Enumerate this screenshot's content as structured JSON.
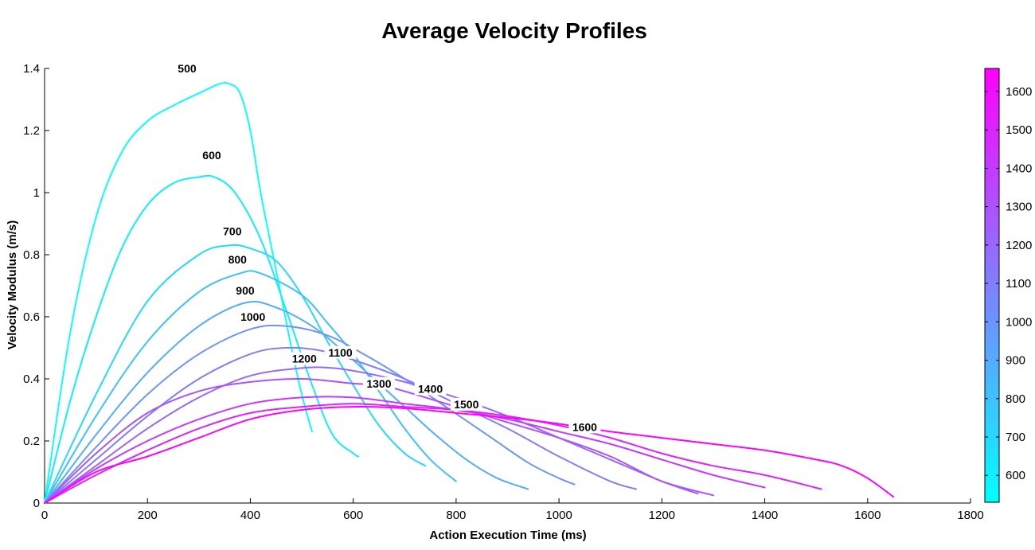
{
  "chart_data": {
    "type": "line",
    "title": "Average Velocity Profiles",
    "xlabel": "Action Execution Time (ms)",
    "ylabel": "Velocity Modulus (m/s)",
    "xlim": [
      0,
      1800
    ],
    "ylim": [
      0,
      1.4
    ],
    "xticks": [
      0,
      200,
      400,
      600,
      800,
      1000,
      1200,
      1400,
      1600,
      1800
    ],
    "yticks": [
      0,
      0.2,
      0.4,
      0.6,
      0.8,
      1,
      1.2,
      1.4
    ],
    "xtick_labels": [
      "0",
      "200",
      "400",
      "600",
      "800",
      "1000",
      "1200",
      "1400",
      "1600",
      "1800"
    ],
    "ytick_labels": [
      "0",
      "0.2",
      "0.4",
      "0.6",
      "0.8",
      "1",
      "1.2",
      "1.4"
    ],
    "colorbar": {
      "range": [
        530,
        1660
      ],
      "ticks": [
        600,
        700,
        800,
        900,
        1000,
        1100,
        1200,
        1300,
        1400,
        1500,
        1600
      ],
      "tick_labels": [
        "600",
        "700",
        "800",
        "900",
        "1000",
        "1100",
        "1200",
        "1300",
        "1400",
        "1500",
        "1600"
      ],
      "colormap": "cool",
      "color_low": "#00ffff",
      "color_high": "#ff00ff"
    },
    "series": [
      {
        "name": "500",
        "label": "500",
        "color_value": 530,
        "dashed": true,
        "x": [
          0,
          50,
          100,
          150,
          200,
          250,
          300,
          340,
          360,
          380,
          400,
          420,
          450,
          480,
          500,
          520
        ],
        "y": [
          0,
          0.55,
          0.92,
          1.13,
          1.23,
          1.28,
          1.32,
          1.35,
          1.35,
          1.32,
          1.2,
          1.0,
          0.75,
          0.5,
          0.35,
          0.23
        ],
        "label_at": [
          277,
          1.39
        ]
      },
      {
        "name": "600",
        "label": "600",
        "color_value": 600,
        "x": [
          0,
          50,
          100,
          150,
          200,
          250,
          300,
          330,
          370,
          420,
          470,
          520,
          560,
          600,
          610
        ],
        "y": [
          0,
          0.33,
          0.6,
          0.82,
          0.96,
          1.03,
          1.05,
          1.05,
          1.0,
          0.85,
          0.62,
          0.38,
          0.22,
          0.16,
          0.15
        ],
        "label_at": [
          325,
          1.11
        ]
      },
      {
        "name": "700",
        "label": "700",
        "color_value": 700,
        "x": [
          0,
          100,
          200,
          300,
          360,
          400,
          450,
          500,
          550,
          600,
          650,
          700,
          740
        ],
        "y": [
          0,
          0.35,
          0.65,
          0.8,
          0.83,
          0.82,
          0.78,
          0.67,
          0.52,
          0.38,
          0.25,
          0.16,
          0.12
        ],
        "label_at": [
          365,
          0.865
        ]
      },
      {
        "name": "800",
        "label": "800",
        "color_value": 800,
        "x": [
          0,
          100,
          200,
          300,
          380,
          420,
          500,
          550,
          600,
          650,
          700,
          750,
          800
        ],
        "y": [
          0,
          0.28,
          0.52,
          0.68,
          0.74,
          0.74,
          0.67,
          0.58,
          0.48,
          0.36,
          0.24,
          0.14,
          0.07
        ],
        "label_at": [
          375,
          0.775
        ]
      },
      {
        "name": "900",
        "label": "900",
        "color_value": 900,
        "x": [
          0,
          100,
          200,
          300,
          390,
          450,
          520,
          580,
          640,
          700,
          760,
          820,
          880,
          940
        ],
        "y": [
          0,
          0.22,
          0.42,
          0.57,
          0.645,
          0.63,
          0.57,
          0.49,
          0.4,
          0.31,
          0.22,
          0.14,
          0.08,
          0.045
        ],
        "label_at": [
          390,
          0.675
        ]
      },
      {
        "name": "1000",
        "label": "1000",
        "color_value": 1000,
        "x": [
          0,
          100,
          200,
          300,
          400,
          470,
          550,
          620,
          700,
          780,
          860,
          940,
          1000,
          1030
        ],
        "y": [
          0,
          0.18,
          0.35,
          0.48,
          0.56,
          0.57,
          0.54,
          0.48,
          0.4,
          0.31,
          0.22,
          0.13,
          0.08,
          0.06
        ],
        "label_at": [
          405,
          0.59
        ]
      },
      {
        "name": "1100",
        "label": "1100",
        "color_value": 1100,
        "x": [
          0,
          100,
          200,
          300,
          400,
          470,
          540,
          620,
          700,
          800,
          900,
          1000,
          1100,
          1150
        ],
        "y": [
          0,
          0.14,
          0.28,
          0.4,
          0.48,
          0.5,
          0.49,
          0.45,
          0.4,
          0.32,
          0.24,
          0.15,
          0.07,
          0.045
        ],
        "label_at": [
          575,
          0.475
        ]
      },
      {
        "name": "1200",
        "label": "1200",
        "color_value": 1200,
        "x": [
          0,
          100,
          200,
          300,
          400,
          500,
          560,
          620,
          700,
          800,
          900,
          1000,
          1100,
          1200,
          1270
        ],
        "y": [
          0,
          0.12,
          0.24,
          0.34,
          0.41,
          0.435,
          0.435,
          0.42,
          0.39,
          0.34,
          0.28,
          0.21,
          0.14,
          0.07,
          0.03
        ],
        "label_at": [
          505,
          0.455
        ]
      },
      {
        "name": "1300",
        "label": "1300",
        "color_value": 1300,
        "x": [
          0,
          100,
          200,
          300,
          400,
          500,
          600,
          650,
          700,
          800,
          900,
          1000,
          1100,
          1200,
          1300
        ],
        "y": [
          0,
          0.16,
          0.29,
          0.36,
          0.39,
          0.4,
          0.385,
          0.38,
          0.36,
          0.31,
          0.26,
          0.21,
          0.15,
          0.07,
          0.025
        ],
        "label_at": [
          650,
          0.375
        ]
      },
      {
        "name": "1400",
        "label": "1400",
        "color_value": 1400,
        "x": [
          0,
          100,
          200,
          300,
          400,
          500,
          600,
          700,
          800,
          900,
          1000,
          1100,
          1200,
          1300,
          1400
        ],
        "y": [
          0,
          0.11,
          0.2,
          0.27,
          0.32,
          0.34,
          0.34,
          0.32,
          0.3,
          0.27,
          0.23,
          0.19,
          0.14,
          0.09,
          0.05
        ],
        "label_at": [
          750,
          0.358
        ]
      },
      {
        "name": "1500",
        "label": "1500",
        "color_value": 1500,
        "x": [
          0,
          100,
          200,
          300,
          400,
          500,
          600,
          700,
          800,
          900,
          1000,
          1100,
          1200,
          1300,
          1400,
          1510
        ],
        "y": [
          0,
          0.09,
          0.17,
          0.24,
          0.29,
          0.31,
          0.32,
          0.31,
          0.3,
          0.28,
          0.25,
          0.21,
          0.16,
          0.12,
          0.09,
          0.045
        ],
        "label_at": [
          820,
          0.308
        ]
      },
      {
        "name": "1600",
        "label": "1600",
        "color_value": 1650,
        "x": [
          0,
          100,
          200,
          300,
          400,
          500,
          600,
          700,
          800,
          900,
          1000,
          1100,
          1200,
          1300,
          1400,
          1500,
          1550,
          1600,
          1650
        ],
        "y": [
          0,
          0.1,
          0.15,
          0.21,
          0.27,
          0.3,
          0.31,
          0.305,
          0.29,
          0.275,
          0.255,
          0.23,
          0.21,
          0.19,
          0.17,
          0.14,
          0.12,
          0.08,
          0.02
        ],
        "label_at": [
          1050,
          0.235
        ]
      }
    ]
  }
}
